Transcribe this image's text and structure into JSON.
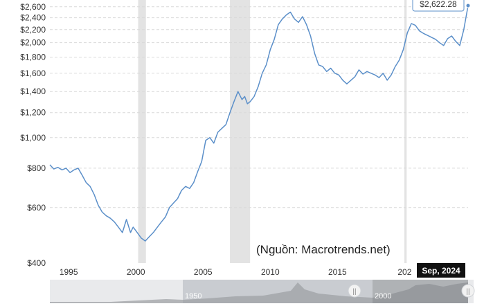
{
  "chart_data": {
    "type": "line",
    "title": "",
    "xlabel": "",
    "ylabel": "",
    "y_scale": "log",
    "ylim": [
      400,
      2650
    ],
    "xlim": [
      1993.6,
      2024.72
    ],
    "grid": true,
    "y_ticks": [
      "$400",
      "$600",
      "$800",
      "$1,000",
      "$1,200",
      "$1,400",
      "$1,600",
      "$1,800",
      "$2,000",
      "$2,200",
      "$2,400",
      "$2,600"
    ],
    "y_tick_values": [
      400,
      600,
      800,
      1000,
      1200,
      1400,
      1600,
      1800,
      2000,
      2200,
      2400,
      2600
    ],
    "x_ticks": [
      "1995",
      "2000",
      "2005",
      "2010",
      "2015",
      "202"
    ],
    "x_tick_values": [
      1995,
      2000,
      2005,
      2010,
      2015,
      2020
    ],
    "recessions": [
      [
        2000.17,
        2000.75
      ],
      [
        2007.0,
        2008.5
      ],
      [
        2019.98,
        2020.15
      ]
    ],
    "series": [
      {
        "color": "#5b8fc9",
        "x": [
          1993.6,
          1993.9,
          1994.2,
          1994.5,
          1994.8,
          1995.1,
          1995.4,
          1995.7,
          1996.0,
          1996.3,
          1996.6,
          1996.9,
          1997.2,
          1997.5,
          1997.8,
          1998.1,
          1998.4,
          1998.7,
          1999.0,
          1999.3,
          1999.6,
          1999.8,
          2000.1,
          2000.4,
          2000.7,
          2001.0,
          2001.3,
          2001.6,
          2001.9,
          2002.2,
          2002.5,
          2002.8,
          2003.1,
          2003.4,
          2003.7,
          2004.0,
          2004.3,
          2004.6,
          2004.9,
          2005.2,
          2005.5,
          2005.8,
          2006.1,
          2006.4,
          2006.7,
          2007.0,
          2007.3,
          2007.6,
          2007.9,
          2008.1,
          2008.3,
          2008.5,
          2008.8,
          2009.1,
          2009.4,
          2009.7,
          2010.0,
          2010.3,
          2010.6,
          2010.9,
          2011.2,
          2011.5,
          2011.8,
          2012.1,
          2012.4,
          2012.7,
          2013.0,
          2013.3,
          2013.6,
          2013.9,
          2014.2,
          2014.5,
          2014.8,
          2015.1,
          2015.4,
          2015.7,
          2016.0,
          2016.3,
          2016.6,
          2016.9,
          2017.2,
          2017.5,
          2017.8,
          2018.1,
          2018.4,
          2018.7,
          2019.0,
          2019.3,
          2019.6,
          2019.9,
          2020.2,
          2020.5,
          2020.8,
          2021.1,
          2021.4,
          2021.7,
          2022.0,
          2022.3,
          2022.6,
          2022.9,
          2023.2,
          2023.5,
          2023.8,
          2024.1,
          2024.4,
          2024.72
        ],
        "y": [
          820,
          795,
          805,
          790,
          800,
          775,
          790,
          800,
          760,
          720,
          700,
          660,
          610,
          580,
          565,
          555,
          540,
          520,
          500,
          550,
          500,
          520,
          500,
          480,
          470,
          485,
          500,
          520,
          540,
          560,
          600,
          620,
          640,
          680,
          700,
          690,
          720,
          780,
          840,
          980,
          1000,
          960,
          1040,
          1070,
          1100,
          1200,
          1300,
          1400,
          1320,
          1350,
          1280,
          1300,
          1350,
          1450,
          1600,
          1700,
          1900,
          2050,
          2280,
          2380,
          2450,
          2500,
          2380,
          2320,
          2420,
          2280,
          2100,
          1850,
          1700,
          1680,
          1620,
          1660,
          1600,
          1580,
          1520,
          1480,
          1520,
          1560,
          1640,
          1590,
          1620,
          1600,
          1580,
          1550,
          1600,
          1520,
          1580,
          1680,
          1760,
          1900,
          2150,
          2300,
          2270,
          2180,
          2140,
          2110,
          2080,
          2050,
          2000,
          1960,
          2060,
          2100,
          2020,
          1960,
          2200,
          2622.28
        ]
      }
    ]
  },
  "tooltip": {
    "value": "$2,622.28"
  },
  "date_label": {
    "value": "Sep, 2024"
  },
  "source_note": "(Nguồn: Macrotrends.net)",
  "navigator": {
    "label": "1950",
    "label2": "2000"
  }
}
